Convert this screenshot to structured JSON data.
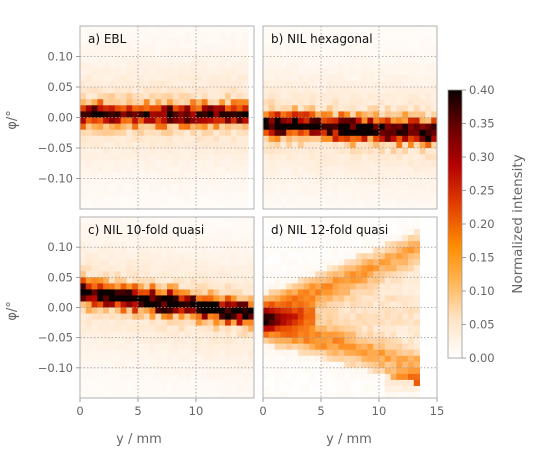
{
  "chart_data": {
    "type": "heatmap",
    "panels": [
      {
        "label": "a) EBL",
        "profile": "flat",
        "y_range": [
          0,
          14.2
        ],
        "center_phi": [
          0.005,
          0.005
        ],
        "width_phi": 0.012,
        "peak": 0.3
      },
      {
        "label": "b) NIL hexagonal",
        "profile": "slight-drift",
        "y_range": [
          0,
          15
        ],
        "center_phi": [
          -0.01,
          -0.025
        ],
        "width_phi": 0.013,
        "peak": 0.34
      },
      {
        "label": "c) NIL 10-fold quasi",
        "profile": "descending",
        "y_range": [
          0,
          15
        ],
        "center_phi": [
          0.025,
          -0.01
        ],
        "width_phi": 0.013,
        "peak": 0.36
      },
      {
        "label": "d) NIL 12-fold quasi",
        "profile": "fan",
        "y_range": [
          0,
          13
        ],
        "center_phi": [
          -0.02,
          0.0
        ],
        "width_phi": 0.02,
        "peak": 0.16
      }
    ],
    "x_axis": {
      "label": "y / mm",
      "ticks_left": [
        "0",
        "5",
        "10"
      ],
      "ticks_right": [
        "0",
        "5",
        "10",
        "15"
      ],
      "range": [
        0,
        15
      ]
    },
    "y_axis": {
      "label": "φ/°",
      "ticks": [
        "0.10",
        "0.05",
        "0.00",
        "−0.05",
        "−0.10"
      ],
      "range": [
        -0.15,
        0.15
      ]
    },
    "colorbar": {
      "label": "Normalized intensity",
      "ticks": [
        "0.40",
        "0.35",
        "0.30",
        "0.25",
        "0.20",
        "0.15",
        "0.10",
        "0.05",
        "0.00"
      ],
      "range": [
        0,
        0.4
      ],
      "colormap": "gist_heat_r"
    },
    "grid": true
  }
}
